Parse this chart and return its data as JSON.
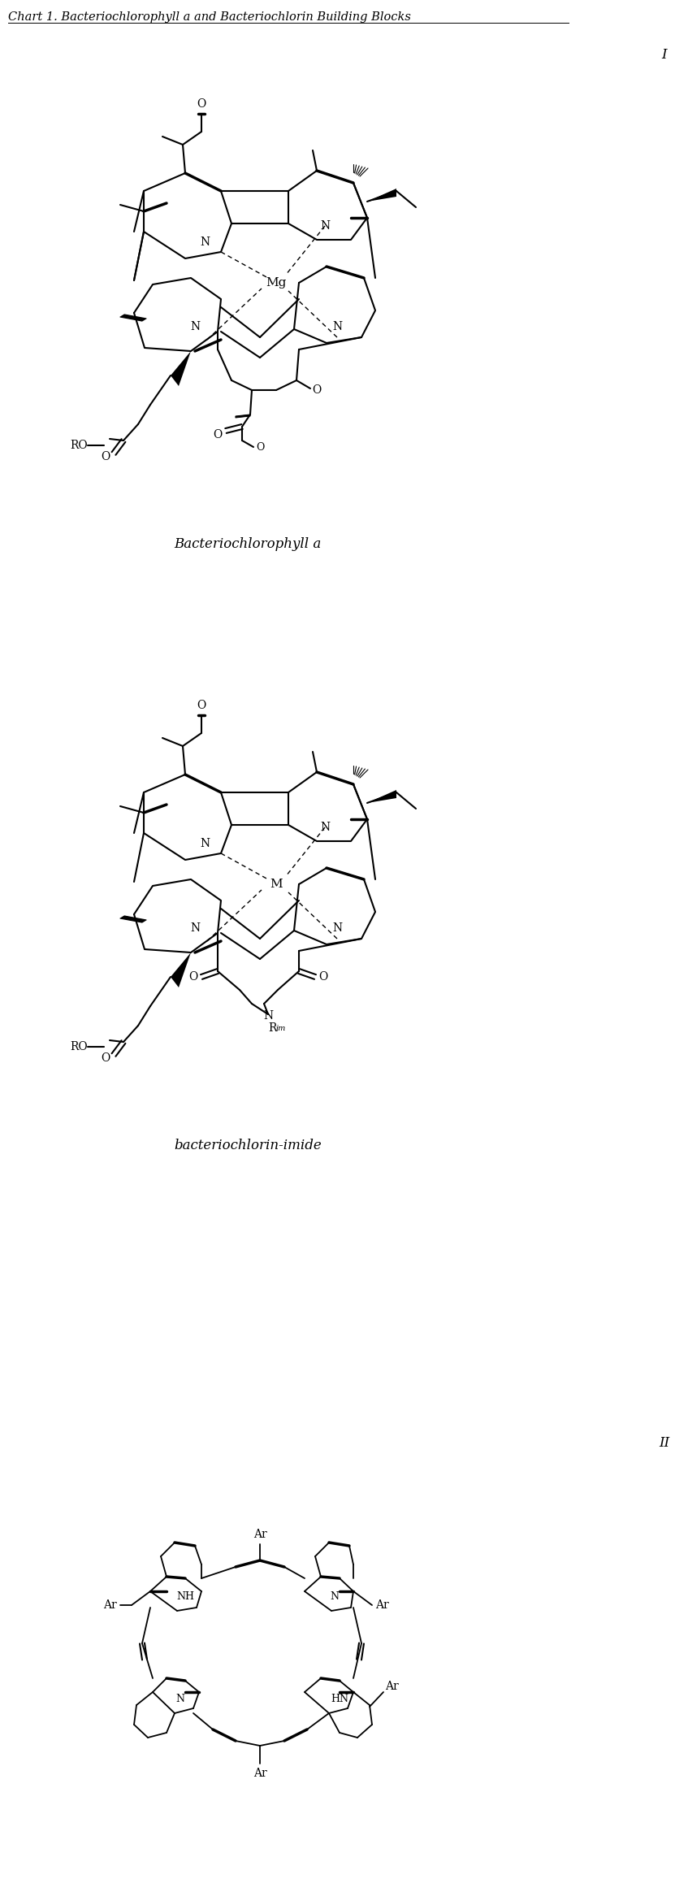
{
  "title": "Chart 1. Bacteriochlorophyll a and Bacteriochlorin Building Blocks",
  "label_I": "I",
  "label_II": "II",
  "label1": "Bacteriochlorophyll a",
  "label2": "bacteriochlorin-imide",
  "figsize": [
    8.47,
    23.12
  ],
  "dpi": 100,
  "bg_color": "#ffffff",
  "text_color": "#000000"
}
